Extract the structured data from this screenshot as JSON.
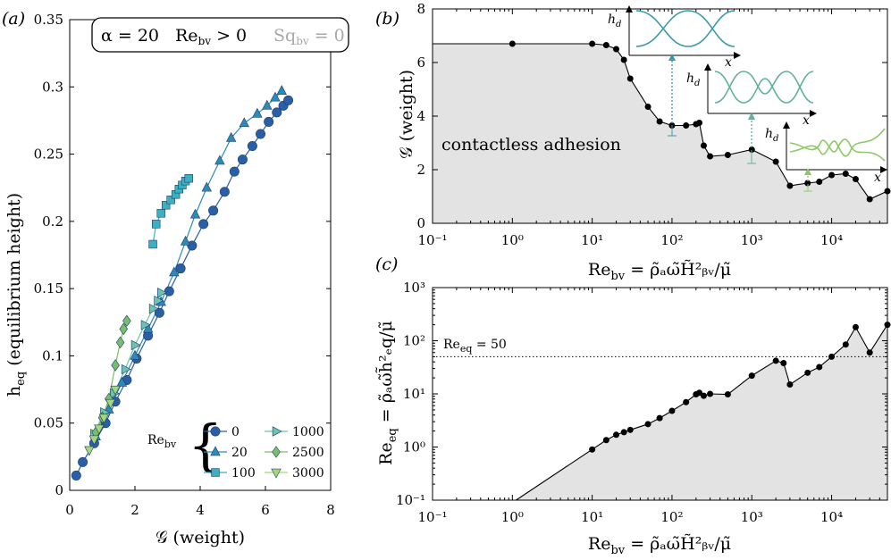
{
  "panels": {
    "a": {
      "letter": "(a)"
    },
    "b": {
      "letter": "(b)"
    },
    "c": {
      "letter": "(c)"
    }
  },
  "header_box": {
    "alpha": "α = 20",
    "re": "Re",
    "re_sub": "bv",
    "re_cond": " > 0",
    "sq": "Sq",
    "sq_sub": "bv",
    "sq_cond": " = 0"
  },
  "legend": {
    "title": "Re",
    "title_sub": "bv",
    "brace": "{"
  },
  "annotations": {
    "contactless": "contactless adhesion",
    "req_line": "Re",
    "req_line_sub": "eq",
    "req_line_val": " = 50",
    "inset_y": "h",
    "inset_y_sub": "d",
    "inset_x": "x"
  },
  "colors": {
    "re0": "#2a5fa6",
    "re20": "#2d8ab8",
    "re100": "#3cb0c0",
    "re1000": "#6cc3b1",
    "re2500": "#79be6a",
    "re3000": "#a6d67a",
    "shade": "#e3e3e3",
    "inset1": "#3a9aa8",
    "inset2": "#5fb394",
    "inset3": "#8ec868"
  },
  "chart_data": [
    {
      "id": "a",
      "type": "scatter",
      "title": "",
      "xlabel": "𝒢 (weight)",
      "ylabel": "h",
      "ylabel_sub": "eq",
      "ylabel_suffix": " (equilibrium height)",
      "xlim": [
        0,
        8
      ],
      "ylim": [
        0,
        0.35
      ],
      "xticks": [
        0,
        2,
        4,
        6,
        8
      ],
      "xtick_labels": [
        "0",
        "2",
        "4",
        "6",
        "8"
      ],
      "yticks": [
        0,
        0.05,
        0.1,
        0.15,
        0.2,
        0.25,
        0.3,
        0.35
      ],
      "ytick_labels": [
        "0",
        "0.05",
        "0.1",
        "0.15",
        "0.2",
        "0.25",
        "0.3",
        "0.35"
      ],
      "series": [
        {
          "name": "0",
          "marker": "circle",
          "color": "#2a5fa6",
          "x": [
            0.2,
            0.4,
            0.75,
            1.1,
            1.4,
            1.75,
            2.05,
            2.4,
            2.75,
            3.05,
            3.4,
            3.75,
            4.1,
            4.4,
            4.75,
            5.05,
            5.3,
            5.6,
            5.85,
            6.1,
            6.35,
            6.55,
            6.7
          ],
          "y": [
            0.011,
            0.021,
            0.035,
            0.05,
            0.066,
            0.082,
            0.098,
            0.115,
            0.132,
            0.148,
            0.165,
            0.182,
            0.198,
            0.208,
            0.222,
            0.237,
            0.246,
            0.256,
            0.265,
            0.274,
            0.281,
            0.286,
            0.29
          ]
        },
        {
          "name": "20",
          "marker": "triangle-up",
          "color": "#2d8ab8",
          "x": [
            0.8,
            1.2,
            1.6,
            2.0,
            2.4,
            2.8,
            3.2,
            3.55,
            3.85,
            4.2,
            4.6,
            4.95,
            5.35,
            5.75,
            6.05,
            6.3,
            6.5
          ],
          "y": [
            0.04,
            0.06,
            0.08,
            0.1,
            0.12,
            0.14,
            0.162,
            0.185,
            0.205,
            0.225,
            0.245,
            0.262,
            0.273,
            0.28,
            0.286,
            0.292,
            0.297
          ]
        },
        {
          "name": "100",
          "marker": "square",
          "color": "#3cb0c0",
          "x": [
            2.55,
            2.65,
            2.8,
            2.95,
            3.1,
            3.25,
            3.35,
            3.45,
            3.55,
            3.65
          ],
          "y": [
            0.183,
            0.198,
            0.206,
            0.212,
            0.216,
            0.22,
            0.224,
            0.227,
            0.23,
            0.232
          ]
        },
        {
          "name": "1000",
          "marker": "triangle-right",
          "color": "#6cc3b1",
          "x": [
            0.75,
            1.05,
            1.35,
            1.7,
            2.0,
            2.3,
            2.55,
            2.7,
            2.8
          ],
          "y": [
            0.042,
            0.058,
            0.072,
            0.09,
            0.108,
            0.123,
            0.135,
            0.141,
            0.147
          ]
        },
        {
          "name": "2500",
          "marker": "diamond",
          "color": "#79be6a",
          "x": [
            0.8,
            1.0,
            1.2,
            1.4,
            1.55,
            1.65,
            1.75
          ],
          "y": [
            0.043,
            0.054,
            0.068,
            0.093,
            0.11,
            0.12,
            0.126
          ]
        },
        {
          "name": "3000",
          "marker": "triangle-down",
          "color": "#a6d67a",
          "x": [
            0.6,
            0.75,
            0.9,
            1.05,
            1.25,
            1.4
          ],
          "y": [
            0.03,
            0.038,
            0.046,
            0.054,
            0.065,
            0.075
          ]
        }
      ],
      "legend_placement": "bottom-right"
    },
    {
      "id": "b",
      "type": "line",
      "xscale": "log",
      "xlabel": "Re",
      "xlabel_sub": "bv",
      "xlabel_suffix": " = ρ̃ₐω̃H̃²ᵦᵥ/μ̃",
      "ylabel": "𝒢 (weight)",
      "xlim": [
        0.1,
        50000
      ],
      "ylim": [
        0,
        8
      ],
      "xticks": [
        0.1,
        1,
        10,
        100,
        1000,
        10000
      ],
      "xtick_labels": [
        "10⁻¹",
        "10⁰",
        "10¹",
        "10²",
        "10³",
        "10⁴"
      ],
      "yticks": [
        0,
        2,
        4,
        6,
        8
      ],
      "ytick_labels": [
        "0",
        "2",
        "4",
        "6",
        "8"
      ],
      "x": [
        1,
        10,
        15,
        20,
        25,
        30,
        50,
        70,
        100,
        150,
        200,
        220,
        250,
        300,
        500,
        1000,
        2000,
        3000,
        5000,
        7000,
        10000,
        15000,
        20000,
        30000,
        50000
      ],
      "y": [
        6.7,
        6.7,
        6.65,
        6.5,
        6.1,
        5.4,
        4.35,
        3.8,
        3.65,
        3.65,
        3.7,
        3.75,
        2.9,
        2.5,
        2.55,
        2.75,
        2.3,
        1.4,
        1.5,
        1.55,
        1.8,
        1.85,
        1.65,
        0.9,
        1.2
      ],
      "fill_under": true
    },
    {
      "id": "c",
      "type": "line",
      "xscale": "log",
      "yscale": "log",
      "xlabel": "Re",
      "xlabel_sub": "bv",
      "xlabel_suffix": " = ρ̃ₐω̃H̃²ᵦᵥ/μ̃",
      "ylabel": "Re",
      "ylabel_sub": "eq",
      "ylabel_suffix": " = ρ̃ₐω̃h̃²ₑq/μ̃",
      "xlim": [
        0.1,
        50000
      ],
      "ylim": [
        0.1,
        1000
      ],
      "xticks": [
        0.1,
        1,
        10,
        100,
        1000,
        10000
      ],
      "xtick_labels": [
        "10⁻¹",
        "10⁰",
        "10¹",
        "10²",
        "10³",
        "10⁴"
      ],
      "yticks": [
        0.1,
        1,
        10,
        100,
        1000
      ],
      "ytick_labels": [
        "10⁻¹",
        "10⁰",
        "10¹",
        "10²",
        "10³"
      ],
      "x": [
        10,
        15,
        20,
        25,
        30,
        50,
        70,
        100,
        150,
        200,
        220,
        250,
        300,
        500,
        1000,
        2000,
        2500,
        3000,
        5000,
        7000,
        10000,
        15000,
        20000,
        30000,
        50000
      ],
      "y": [
        0.9,
        1.35,
        1.7,
        1.9,
        2.1,
        2.7,
        3.5,
        4.8,
        7.0,
        9.8,
        10.5,
        9.2,
        10.0,
        9.8,
        22,
        42,
        38,
        15,
        25,
        32,
        50,
        85,
        180,
        60,
        200
      ],
      "reference_line": 50,
      "fill_under": true
    }
  ]
}
